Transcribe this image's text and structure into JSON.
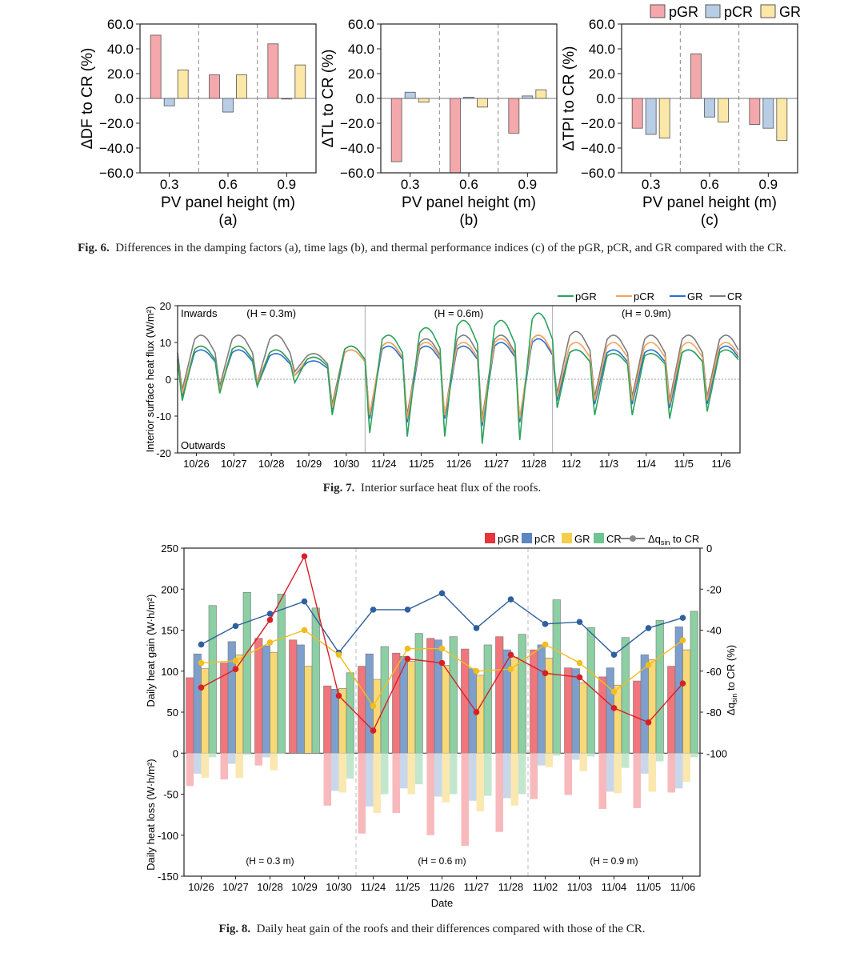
{
  "colors": {
    "pGR": "#f4a8ac",
    "pCR": "#b8cde6",
    "GR": "#fbe7a6",
    "CR": "#9fd8b0",
    "pGR_dark": "#e8343c",
    "pCR_dark": "#3e6ea8",
    "GR_dark": "#f5c43a",
    "CR_dark": "#5dbf7e",
    "line_pGR": "#2ba35b",
    "line_pCR": "#f5a25a",
    "line_GR": "#2a6fcf",
    "line_CR": "#7d7d7d"
  },
  "captions": {
    "fig6_label": "Fig. 6.",
    "fig6_text": "Differences in the damping factors (a), time lags (b), and thermal performance indices (c) of the pGR, pCR, and GR compared with the CR.",
    "fig7_label": "Fig. 7.",
    "fig7_text": "Interior surface heat flux of the roofs.",
    "fig8_label": "Fig. 8.",
    "fig8_text": "Daily heat gain of the roofs and their differences compared with those of the CR."
  },
  "chart_data": [
    {
      "id": "fig6a",
      "type": "bar",
      "panel_label": "(a)",
      "ylabel": "ΔDF to CR (%)",
      "xlabel": "PV panel height (m)",
      "categories": [
        "0.3",
        "0.6",
        "0.9"
      ],
      "ylim": [
        -60,
        60
      ],
      "yticks": [
        "60.0",
        "40.0",
        "20.0",
        "0.0",
        "−20.0",
        "−40.0",
        "−60.0"
      ],
      "series": [
        {
          "name": "pGR",
          "values": [
            51,
            19,
            44
          ]
        },
        {
          "name": "pCR",
          "values": [
            -6,
            -11,
            0
          ]
        },
        {
          "name": "GR",
          "values": [
            23,
            19,
            27
          ]
        }
      ]
    },
    {
      "id": "fig6b",
      "type": "bar",
      "panel_label": "(b)",
      "ylabel": "ΔTL to CR (%)",
      "xlabel": "PV panel height (m)",
      "categories": [
        "0.3",
        "0.6",
        "0.9"
      ],
      "ylim": [
        -60,
        60
      ],
      "yticks": [
        "60.0",
        "40.0",
        "20.0",
        "0.0",
        "−20.0",
        "−40.0",
        "−60.0"
      ],
      "series": [
        {
          "name": "pGR",
          "values": [
            -51,
            -60,
            -28
          ]
        },
        {
          "name": "pCR",
          "values": [
            5,
            1,
            2
          ]
        },
        {
          "name": "GR",
          "values": [
            -3,
            -7,
            7
          ]
        }
      ]
    },
    {
      "id": "fig6c",
      "type": "bar",
      "panel_label": "(c)",
      "ylabel": "ΔTPI to CR (%)",
      "xlabel": "PV panel height (m)",
      "categories": [
        "0.3",
        "0.6",
        "0.9"
      ],
      "ylim": [
        -60,
        60
      ],
      "yticks": [
        "60.0",
        "40.0",
        "20.0",
        "0.0",
        "−20.0",
        "−40.0",
        "−60.0"
      ],
      "legend": [
        "pGR",
        "pCR",
        "GR"
      ],
      "series": [
        {
          "name": "pGR",
          "values": [
            -24,
            36,
            -21
          ]
        },
        {
          "name": "pCR",
          "values": [
            -29,
            -15,
            -24
          ]
        },
        {
          "name": "GR",
          "values": [
            -32,
            -19,
            -34
          ]
        }
      ]
    },
    {
      "id": "fig7",
      "type": "line",
      "ylabel": "Interior surface heat flux (W/m²)",
      "ylim": [
        -20,
        20
      ],
      "yticks": [
        "20",
        "10",
        "0",
        "-10",
        "-20"
      ],
      "x_labels": [
        "10/26",
        "10/27",
        "10/28",
        "10/29",
        "10/30",
        "11/24",
        "11/25",
        "11/26",
        "11/27",
        "11/28",
        "11/2",
        "11/3",
        "11/4",
        "11/5",
        "11/6"
      ],
      "legend": [
        "pGR",
        "pCR",
        "GR",
        "CR"
      ],
      "annotations": {
        "inwards": "Inwards",
        "outwards": "Outwards",
        "h1": "(H = 0.3m)",
        "h2": "(H = 0.6m)",
        "h3": "(H = 0.9m)"
      },
      "day_min": {
        "pGR": [
          -6,
          -4,
          -2,
          -1,
          -10,
          -15,
          -16,
          -16,
          -18,
          -17,
          -8,
          -10,
          -10,
          -11,
          -9
        ],
        "pCR": [
          -4,
          -3,
          -1,
          1,
          -8,
          -10,
          -11,
          -10,
          -12,
          -11,
          -5,
          -6,
          -6,
          -7,
          -6
        ],
        "GR": [
          -5,
          -3,
          -2,
          1,
          -9,
          -11,
          -12,
          -11,
          -13,
          -12,
          -6,
          -7,
          -7,
          -8,
          -7
        ],
        "CR": [
          -3,
          -2,
          -1,
          2,
          -7,
          -10,
          -10,
          -10,
          -11,
          -11,
          -4,
          -5,
          -5,
          -6,
          -5
        ]
      },
      "day_max": {
        "pGR": [
          9,
          9,
          8,
          6,
          9,
          12,
          14,
          16,
          16,
          18,
          8,
          7,
          7,
          8,
          8
        ],
        "pCR": [
          9,
          9,
          8,
          6,
          8,
          10,
          10,
          10,
          11,
          12,
          10,
          10,
          10,
          10,
          10
        ],
        "GR": [
          8,
          8,
          7,
          5,
          8,
          9,
          9,
          9,
          10,
          11,
          8,
          8,
          8,
          8,
          9
        ],
        "CR": [
          12,
          12,
          12,
          7,
          9,
          10,
          11,
          12,
          12,
          12,
          13,
          12,
          12,
          12,
          12
        ]
      }
    },
    {
      "id": "fig8",
      "type": "bar",
      "ylabel_gain": "Daily heat gain (W·h/m²)",
      "ylabel_loss": "Daily heat loss (W·h/m²)",
      "y2label": "Δq",
      "y2label_sub": "sin",
      "y2label_tail": " to CR (%)",
      "xlabel": "Date",
      "ylim": [
        -150,
        250
      ],
      "yticks": [
        "250",
        "200",
        "150",
        "100",
        "50",
        "0",
        "-50",
        "-100",
        "-150"
      ],
      "y2lim": [
        -100,
        0
      ],
      "y2ticks": [
        "0",
        "-20",
        "-40",
        "-60",
        "-80",
        "-100"
      ],
      "categories": [
        "10/26",
        "10/27",
        "10/28",
        "10/29",
        "10/30",
        "11/24",
        "11/25",
        "11/26",
        "11/27",
        "11/28",
        "11/02",
        "11/03",
        "11/04",
        "11/05",
        "11/06"
      ],
      "legend": [
        "pGR",
        "pCR",
        "GR",
        "CR"
      ],
      "legend_line_pre": "Δq",
      "legend_line_sub": "sin",
      "legend_line_post": " to CR",
      "annotations": {
        "h1": "(H = 0.3 m)",
        "h2": "(H = 0.6 m)",
        "h3": "(H = 0.9 m)"
      },
      "gain": {
        "pGR": [
          92,
          110,
          140,
          138,
          82,
          106,
          122,
          140,
          127,
          142,
          126,
          104,
          93,
          88,
          106
        ],
        "pCR": [
          121,
          136,
          131,
          132,
          78,
          121,
          118,
          138,
          103,
          126,
          132,
          103,
          104,
          120,
          154
        ],
        "GR": [
          103,
          120,
          123,
          106,
          79,
          90,
          112,
          107,
          95,
          117,
          116,
          86,
          83,
          114,
          126
        ],
        "CR": [
          180,
          196,
          194,
          177,
          98,
          130,
          146,
          142,
          132,
          145,
          187,
          153,
          141,
          162,
          173
        ]
      },
      "loss": {
        "pGR": [
          -40,
          -32,
          -15,
          0,
          -64,
          -98,
          -73,
          -100,
          -113,
          -96,
          -56,
          -51,
          -68,
          -67,
          -48
        ],
        "pCR": [
          -25,
          -13,
          -5,
          0,
          -46,
          -65,
          -43,
          -53,
          -58,
          -55,
          -15,
          -8,
          -47,
          -25,
          -43
        ],
        "GR": [
          -30,
          -30,
          -21,
          0,
          -48,
          -73,
          -50,
          -60,
          -71,
          -64,
          -17,
          -22,
          -49,
          -47,
          -35
        ],
        "CR": [
          -5,
          -2,
          -1,
          0,
          -31,
          -50,
          -38,
          -50,
          -52,
          -50,
          -3,
          -4,
          -18,
          -10,
          -5
        ]
      },
      "delta": {
        "pGR": [
          -68,
          -59,
          -35,
          -4,
          -72,
          -89,
          -54,
          -56,
          -80,
          -52,
          -61,
          -63,
          -78,
          -85,
          -66
        ],
        "pCR": [
          -47,
          -38,
          -32,
          -26,
          -51,
          -30,
          -30,
          -22,
          -39,
          -25,
          -37,
          -36,
          -52,
          -39,
          -34
        ],
        "GR": [
          -56,
          -55,
          -46,
          -40,
          -52,
          -77,
          -49,
          -49,
          -60,
          -59,
          -47,
          -56,
          -70,
          -57,
          -45
        ]
      }
    }
  ]
}
